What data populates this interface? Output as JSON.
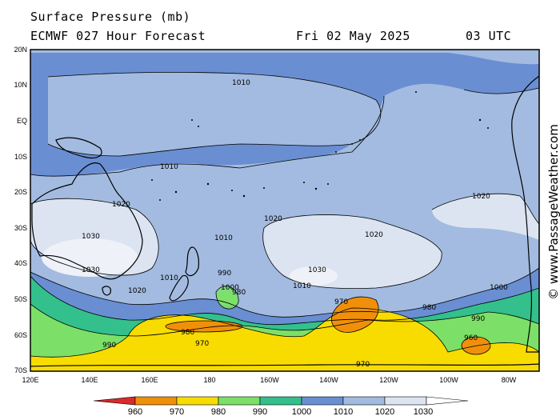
{
  "header": {
    "title": "Surface Pressure (mb)",
    "model": "ECMWF 027 Hour Forecast",
    "date": "Fri 02 May 2025",
    "time": "03 UTC"
  },
  "map": {
    "lat_ticks": [
      "20N",
      "10N",
      "EQ",
      "10S",
      "20S",
      "30S",
      "40S",
      "50S",
      "60S",
      "70S"
    ],
    "lon_ticks": [
      "120E",
      "140E",
      "160E",
      "180",
      "160W",
      "140W",
      "120W",
      "100W",
      "80W"
    ],
    "isobar_labels": [
      "1030",
      "1030",
      "1020",
      "1020",
      "1010",
      "1010",
      "1000",
      "990",
      "990",
      "980",
      "980",
      "970",
      "970",
      "960",
      "1010",
      "1020",
      "1000",
      "990",
      "980",
      "970",
      "1020",
      "1030",
      "1020",
      "1010",
      "1010"
    ],
    "centers": [
      {
        "type": "H",
        "value": "1030",
        "location": "35S 130W"
      },
      {
        "type": "H",
        "value": "1030",
        "location": "33S 135E"
      },
      {
        "type": "L",
        "value": "970",
        "location": "62S 165E"
      },
      {
        "type": "L",
        "value": "970",
        "location": "60S 135W"
      },
      {
        "type": "L",
        "value": "970",
        "location": "59S 92W"
      },
      {
        "type": "L",
        "value": "990",
        "location": "43S 175W"
      }
    ]
  },
  "colorbar": {
    "labels": [
      "960",
      "970",
      "980",
      "990",
      "1000",
      "1010",
      "1020",
      "1030"
    ],
    "colors": [
      "#dc2a2a",
      "#f0900a",
      "#f8dc00",
      "#7ce068",
      "#33c08c",
      "#6a8ed2",
      "#a3bbe0",
      "#dce4f2",
      "#ffffff"
    ]
  },
  "colors": {
    "land_outline": "#000000",
    "isobar": "#000000",
    "frame": "#000000"
  },
  "watermark": "© www.PassageWeather.com"
}
